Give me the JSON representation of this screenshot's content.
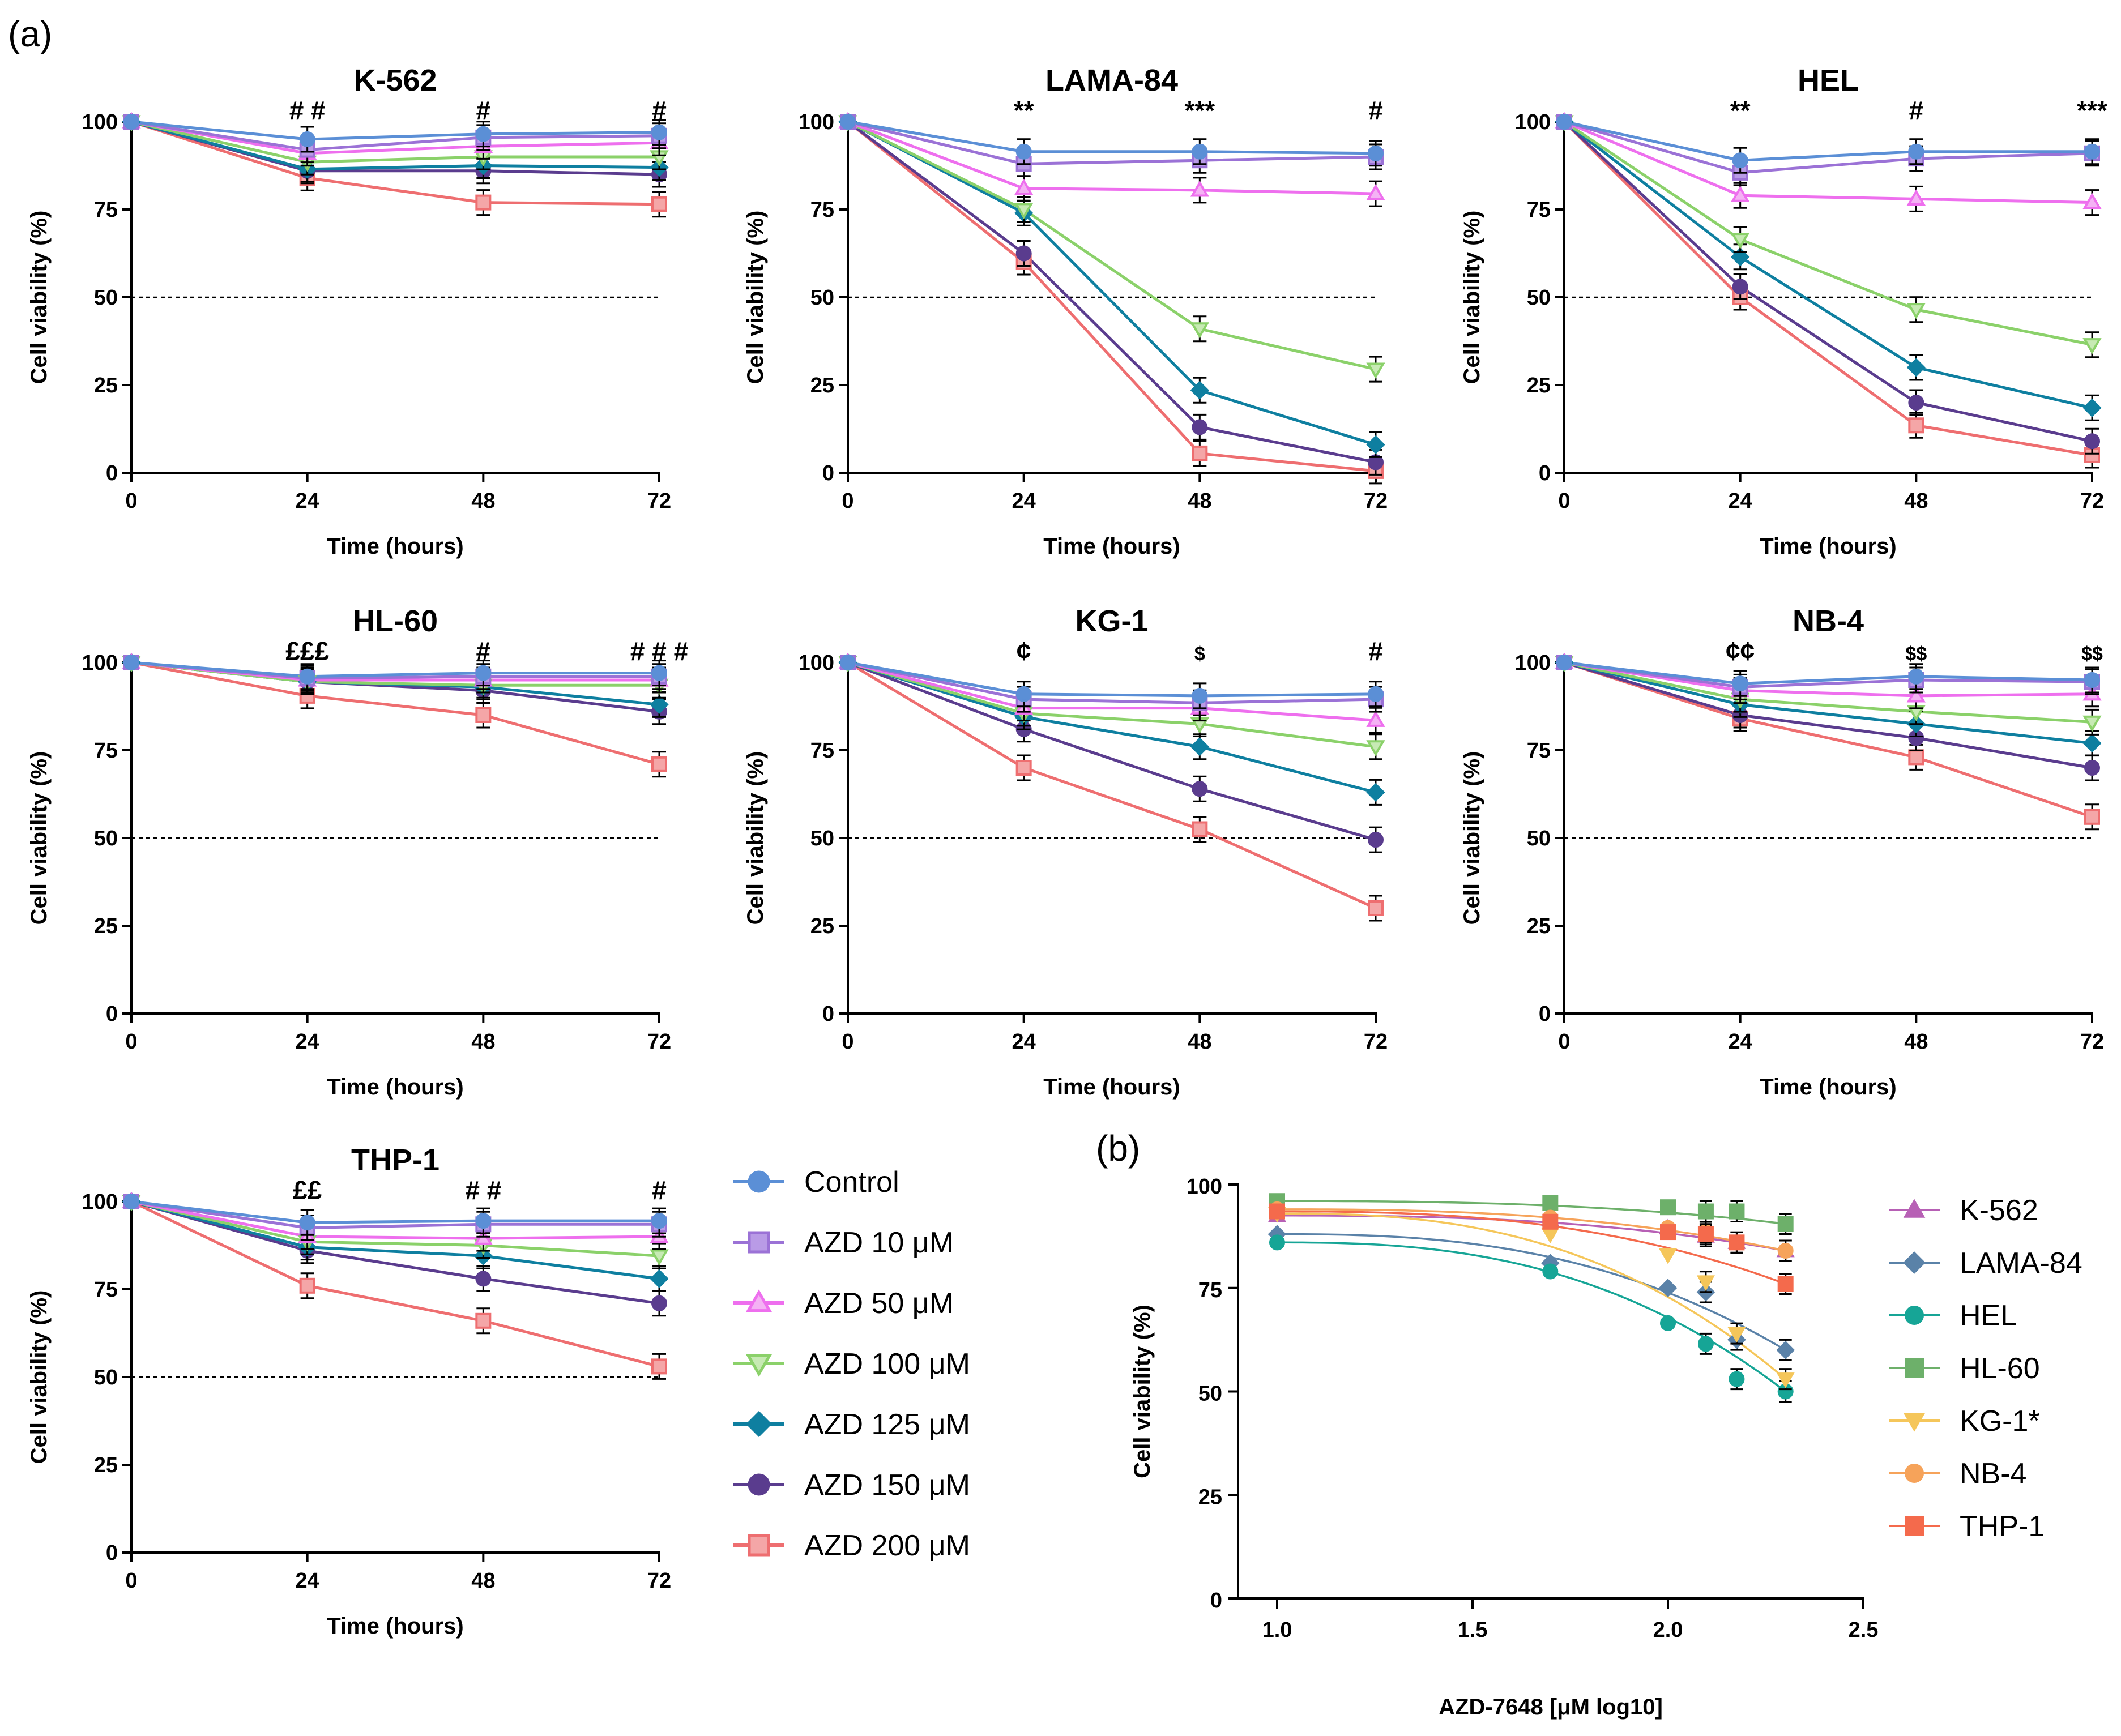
{
  "figure_labels": {
    "a": "(a)",
    "b": "(b)"
  },
  "legend_a": {
    "entries": [
      {
        "name": "Control",
        "color": "#5B8FD6",
        "marker": "circle",
        "fill": "#5B8FD6"
      },
      {
        "name": "AZD 10 μM",
        "color": "#9B72D6",
        "marker": "square",
        "fill": "#B99BE6"
      },
      {
        "name": "AZD 50 μM",
        "color": "#EE6FEE",
        "marker": "triangle-up",
        "fill": "#F4B2F4"
      },
      {
        "name": "AZD 100 μM",
        "color": "#8BD16A",
        "marker": "triangle-down",
        "fill": "#C7EAB4"
      },
      {
        "name": "AZD 125 μM",
        "color": "#0E7FA0",
        "marker": "diamond",
        "fill": "#0E7FA0"
      },
      {
        "name": "AZD 150 μM",
        "color": "#5A3C8E",
        "marker": "circle",
        "fill": "#5A3C8E"
      },
      {
        "name": "AZD 200 μM",
        "color": "#EE6E70",
        "marker": "square",
        "fill": "#F4A6A7"
      }
    ]
  },
  "legend_b": {
    "entries": [
      {
        "name": "K-562",
        "color": "#B760B5",
        "marker": "triangle-up"
      },
      {
        "name": "LAMA-84",
        "color": "#5A82A8",
        "marker": "diamond"
      },
      {
        "name": "HEL",
        "color": "#16A596",
        "marker": "circle"
      },
      {
        "name": "HL-60",
        "color": "#6DB06A",
        "marker": "square"
      },
      {
        "name": "KG-1*",
        "color": "#F5C65A",
        "marker": "triangle-down"
      },
      {
        "name": "NB-4",
        "color": "#F6A35A",
        "marker": "circle"
      },
      {
        "name": "THP-1",
        "color": "#F46A4C",
        "marker": "square"
      }
    ]
  },
  "chart_data": [
    {
      "type": "line",
      "title": "K-562",
      "xlabel": "Time (hours)",
      "ylabel": "Cell viability (%)",
      "x": [
        0,
        24,
        48,
        72
      ],
      "xticks": [
        "0",
        "24",
        "48",
        "72"
      ],
      "yticks": [
        "0",
        "25",
        "50",
        "75",
        "100"
      ],
      "xlim": [
        0,
        72
      ],
      "ylim": [
        0,
        100
      ],
      "reference_line": 50,
      "series": [
        {
          "name": "Control",
          "values": [
            100,
            95,
            96.5,
            97
          ]
        },
        {
          "name": "AZD 10 μM",
          "values": [
            100,
            92,
            95.5,
            96
          ]
        },
        {
          "name": "AZD 50 μM",
          "values": [
            100,
            91,
            93,
            94
          ]
        },
        {
          "name": "AZD 100 μM",
          "values": [
            100,
            88.5,
            90,
            90
          ]
        },
        {
          "name": "AZD 125 μM",
          "values": [
            100,
            86.5,
            87.5,
            87
          ]
        },
        {
          "name": "AZD 150 μM",
          "values": [
            100,
            86,
            86,
            85
          ]
        },
        {
          "name": "AZD 200 μM",
          "values": [
            100,
            84,
            77,
            76.5
          ]
        }
      ],
      "annotations": [
        {
          "x": 24,
          "text": "# #"
        },
        {
          "x": 48,
          "text": "#"
        },
        {
          "x": 72,
          "text": "#"
        }
      ]
    },
    {
      "type": "line",
      "title": "LAMA-84",
      "xlabel": "Time (hours)",
      "ylabel": "Cell viability (%)",
      "x": [
        0,
        24,
        48,
        72
      ],
      "xticks": [
        "0",
        "24",
        "48",
        "72"
      ],
      "yticks": [
        "0",
        "25",
        "50",
        "75",
        "100"
      ],
      "xlim": [
        0,
        72
      ],
      "ylim": [
        0,
        100
      ],
      "reference_line": 50,
      "series": [
        {
          "name": "Control",
          "values": [
            100,
            91.5,
            91.5,
            91
          ]
        },
        {
          "name": "AZD 10 μM",
          "values": [
            100,
            88,
            89,
            90
          ]
        },
        {
          "name": "AZD 50 μM",
          "values": [
            100,
            81,
            80.5,
            79.5
          ]
        },
        {
          "name": "AZD 100 μM",
          "values": [
            100,
            75,
            41,
            29.5
          ]
        },
        {
          "name": "AZD 125 μM",
          "values": [
            100,
            74,
            23.5,
            8
          ]
        },
        {
          "name": "AZD 150 μM",
          "values": [
            100,
            62.5,
            13,
            3
          ]
        },
        {
          "name": "AZD 200 μM",
          "values": [
            100,
            60,
            5.5,
            0.5
          ]
        }
      ],
      "annotations": [
        {
          "x": 24,
          "text": "**"
        },
        {
          "x": 48,
          "text": "***"
        },
        {
          "x": 72,
          "text": "#"
        }
      ]
    },
    {
      "type": "line",
      "title": "HEL",
      "xlabel": "Time (hours)",
      "ylabel": "Cell viability (%)",
      "x": [
        0,
        24,
        48,
        72
      ],
      "xticks": [
        "0",
        "24",
        "48",
        "72"
      ],
      "yticks": [
        "0",
        "25",
        "50",
        "75",
        "100"
      ],
      "xlim": [
        0,
        72
      ],
      "ylim": [
        0,
        100
      ],
      "reference_line": 50,
      "series": [
        {
          "name": "Control",
          "values": [
            100,
            89,
            91.5,
            91.5
          ]
        },
        {
          "name": "AZD 10 μM",
          "values": [
            100,
            85.5,
            89.5,
            91
          ]
        },
        {
          "name": "AZD 50 μM",
          "values": [
            100,
            79,
            78,
            77
          ]
        },
        {
          "name": "AZD 100 μM",
          "values": [
            100,
            66.5,
            46.5,
            36.5
          ]
        },
        {
          "name": "AZD 125 μM",
          "values": [
            100,
            61.5,
            30,
            18.5
          ]
        },
        {
          "name": "AZD 150 μM",
          "values": [
            100,
            53,
            20,
            9
          ]
        },
        {
          "name": "AZD 200 μM",
          "values": [
            100,
            50,
            13.5,
            5
          ]
        }
      ],
      "annotations": [
        {
          "x": 24,
          "text": "**"
        },
        {
          "x": 48,
          "text": "#"
        },
        {
          "x": 72,
          "text": "***"
        }
      ]
    },
    {
      "type": "line",
      "title": "HL-60",
      "xlabel": "Time (hours)",
      "ylabel": "Cell viability (%)",
      "x": [
        0,
        24,
        48,
        72
      ],
      "xticks": [
        "0",
        "24",
        "48",
        "72"
      ],
      "yticks": [
        "0",
        "25",
        "50",
        "75",
        "100"
      ],
      "xlim": [
        0,
        72
      ],
      "ylim": [
        0,
        100
      ],
      "reference_line": 50,
      "series": [
        {
          "name": "Control",
          "values": [
            100,
            96,
            97,
            97
          ]
        },
        {
          "name": "AZD 10 μM",
          "values": [
            100,
            95.5,
            96,
            96
          ]
        },
        {
          "name": "AZD 50 μM",
          "values": [
            100,
            95,
            95,
            95
          ]
        },
        {
          "name": "AZD 100 μM",
          "values": [
            100,
            94.5,
            93.5,
            93.5
          ]
        },
        {
          "name": "AZD 125 μM",
          "values": [
            100,
            94.5,
            93,
            88
          ]
        },
        {
          "name": "AZD 150 μM",
          "values": [
            100,
            94.5,
            92,
            86
          ]
        },
        {
          "name": "AZD 200 μM",
          "values": [
            100,
            90.5,
            85,
            71
          ]
        }
      ],
      "annotations": [
        {
          "x": 24,
          "text": "£££"
        },
        {
          "x": 48,
          "text": "#"
        },
        {
          "x": 72,
          "text": "# # #"
        }
      ]
    },
    {
      "type": "line",
      "title": "KG-1",
      "xlabel": "Time (hours)",
      "ylabel": "Cell viability (%)",
      "x": [
        0,
        24,
        48,
        72
      ],
      "xticks": [
        "0",
        "24",
        "48",
        "72"
      ],
      "yticks": [
        "0",
        "25",
        "50",
        "75",
        "100"
      ],
      "xlim": [
        0,
        72
      ],
      "ylim": [
        0,
        100
      ],
      "reference_line": 50,
      "series": [
        {
          "name": "Control",
          "values": [
            100,
            91,
            90.5,
            91
          ]
        },
        {
          "name": "AZD 10 μM",
          "values": [
            100,
            89.5,
            88.5,
            89.5
          ]
        },
        {
          "name": "AZD 50 μM",
          "values": [
            100,
            87,
            87,
            83.5
          ]
        },
        {
          "name": "AZD 100 μM",
          "values": [
            100,
            85.5,
            82.5,
            76
          ]
        },
        {
          "name": "AZD 125 μM",
          "values": [
            100,
            84.5,
            76,
            63
          ]
        },
        {
          "name": "AZD 150 μM",
          "values": [
            100,
            81,
            64,
            49.5
          ]
        },
        {
          "name": "AZD 200 μM",
          "values": [
            100,
            70,
            52.5,
            30
          ]
        }
      ],
      "annotations": [
        {
          "x": 24,
          "text": "¢"
        },
        {
          "x": 48,
          "text": "$"
        },
        {
          "x": 72,
          "text": "#"
        }
      ]
    },
    {
      "type": "line",
      "title": "NB-4",
      "xlabel": "Time (hours)",
      "ylabel": "Cell viability (%)",
      "x": [
        0,
        24,
        48,
        72
      ],
      "xticks": [
        "0",
        "24",
        "48",
        "72"
      ],
      "yticks": [
        "0",
        "25",
        "50",
        "75",
        "100"
      ],
      "xlim": [
        0,
        72
      ],
      "ylim": [
        0,
        100
      ],
      "reference_line": 50,
      "series": [
        {
          "name": "Control",
          "values": [
            100,
            94,
            96,
            95
          ]
        },
        {
          "name": "AZD 10 μM",
          "values": [
            100,
            93,
            95,
            94.5
          ]
        },
        {
          "name": "AZD 50 μM",
          "values": [
            100,
            92,
            90.5,
            91
          ]
        },
        {
          "name": "AZD 100 μM",
          "values": [
            100,
            89.5,
            86,
            83
          ]
        },
        {
          "name": "AZD 125 μM",
          "values": [
            100,
            88,
            82.5,
            77
          ]
        },
        {
          "name": "AZD 150 μM",
          "values": [
            100,
            85,
            78.5,
            70
          ]
        },
        {
          "name": "AZD 200 μM",
          "values": [
            100,
            84,
            73,
            56
          ]
        }
      ],
      "annotations": [
        {
          "x": 24,
          "text": "¢¢"
        },
        {
          "x": 48,
          "text": "$$"
        },
        {
          "x": 72,
          "text": "$$"
        }
      ]
    },
    {
      "type": "line",
      "title": "THP-1",
      "xlabel": "Time (hours)",
      "ylabel": "Cell viability (%)",
      "x": [
        0,
        24,
        48,
        72
      ],
      "xticks": [
        "0",
        "24",
        "48",
        "72"
      ],
      "yticks": [
        "0",
        "25",
        "50",
        "75",
        "100"
      ],
      "xlim": [
        0,
        72
      ],
      "ylim": [
        0,
        100
      ],
      "reference_line": 50,
      "series": [
        {
          "name": "Control",
          "values": [
            100,
            94,
            94.5,
            94.5
          ]
        },
        {
          "name": "AZD 10 μM",
          "values": [
            100,
            92.5,
            93.5,
            93.5
          ]
        },
        {
          "name": "AZD 50 μM",
          "values": [
            100,
            90,
            89.5,
            90
          ]
        },
        {
          "name": "AZD 100 μM",
          "values": [
            100,
            88.5,
            87.5,
            84.5
          ]
        },
        {
          "name": "AZD 125 μM",
          "values": [
            100,
            87,
            84.5,
            78
          ]
        },
        {
          "name": "AZD 150 μM",
          "values": [
            100,
            86,
            78,
            71
          ]
        },
        {
          "name": "AZD 200 μM",
          "values": [
            100,
            76,
            66,
            53
          ]
        }
      ],
      "annotations": [
        {
          "x": 24,
          "text": "££"
        },
        {
          "x": 48,
          "text": "# #"
        },
        {
          "x": 72,
          "text": "#"
        }
      ]
    },
    {
      "type": "scatter",
      "title": "",
      "xlabel": "AZD-7648 [μM log10]",
      "ylabel": "Cell viability (%)",
      "xlim": [
        0.9,
        2.5
      ],
      "ylim": [
        0,
        100
      ],
      "xticks": [
        {
          "v": 1.0,
          "label": "1.0"
        },
        {
          "v": 1.5,
          "label": "1.5"
        },
        {
          "v": 2.0,
          "label": "2.0"
        },
        {
          "v": 2.5,
          "label": "2.5"
        }
      ],
      "yticks": [
        {
          "v": 0,
          "label": "0"
        },
        {
          "v": 25,
          "label": "25"
        },
        {
          "v": 50,
          "label": "50"
        },
        {
          "v": 75,
          "label": "75"
        },
        {
          "v": 100,
          "label": "100"
        }
      ],
      "x": [
        1.0,
        1.699,
        2.0,
        2.097,
        2.176,
        2.301
      ],
      "series": [
        {
          "name": "K-562",
          "values": [
            92.5,
            91.5,
            89.5,
            87.5,
            86,
            84
          ]
        },
        {
          "name": "LAMA-84",
          "values": [
            88,
            81,
            75,
            74,
            62.5,
            60
          ]
        },
        {
          "name": "HEL",
          "values": [
            86,
            79,
            66.5,
            61.5,
            53,
            50
          ]
        },
        {
          "name": "HL-60",
          "values": [
            96,
            95.5,
            94.5,
            93.5,
            93.5,
            90.5
          ]
        },
        {
          "name": "KG-1*",
          "values": [
            93,
            88,
            83,
            76.5,
            64,
            53
          ]
        },
        {
          "name": "NB-4",
          "values": [
            94,
            92,
            89.5,
            88.5,
            86,
            84
          ]
        },
        {
          "name": "THP-1",
          "values": [
            93.5,
            91,
            88.5,
            88,
            86,
            76
          ]
        }
      ]
    }
  ]
}
